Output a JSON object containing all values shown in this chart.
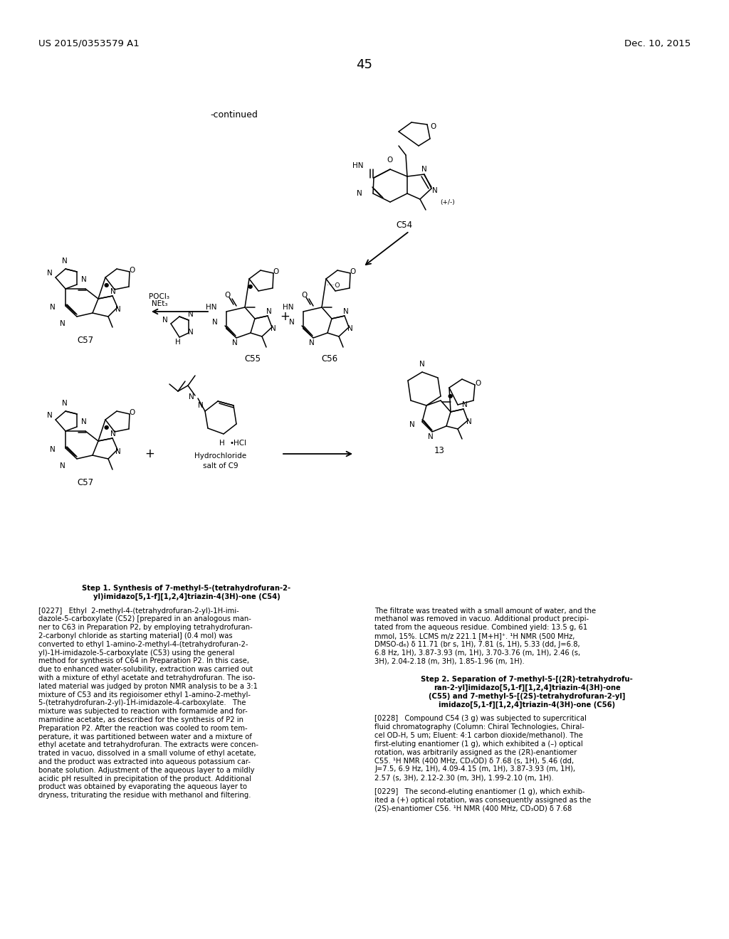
{
  "background_color": "#ffffff",
  "header_left": "US 2015/0353579 A1",
  "header_right": "Dec. 10, 2015",
  "page_number": "45",
  "continued_label": "-continued",
  "fig_width": 10.24,
  "fig_height": 13.2,
  "text_color": "#000000",
  "font_size_header": 9.5,
  "font_size_body": 7.2,
  "font_size_label": 7.5,
  "step1_title_l1": "Step 1. Synthesis of 7-methyl-5-(tetrahydrofuran-2-",
  "step1_title_l2": "yl)imidazo[5,1-f][1,2,4]triazin-4(3H)-one (C54)",
  "step2_title_l1": "Step 2. Separation of 7-methyl-5-[(2R)-tetrahydrofu-",
  "step2_title_l2": "ran-2-yl]imidazo[5,1-f][1,2,4]triazin-4(3H)-one",
  "step2_title_l3": "(C55) and 7-methyl-5-[(2S)-tetrahydrofuran-2-yl]",
  "step2_title_l4": "imidazo[5,1-f][1,2,4]triazin-4(3H)-one (C56)",
  "para0227_lines": [
    "[0227]   Ethyl  2-methyl-4-(tetrahydrofuran-2-yl)-1H-imi-",
    "dazole-5-carboxylate (C52) [prepared in an analogous man-",
    "ner to C63 in Preparation P2, by employing tetrahydrofuran-",
    "2-carbonyl chloride as starting material] (0.4 mol) was",
    "converted to ethyl 1-amino-2-methyl-4-(tetrahydrofuran-2-",
    "yl)-1H-imidazole-5-carboxylate (C53) using the general",
    "method for synthesis of C64 in Preparation P2. In this case,",
    "due to enhanced water-solubility, extraction was carried out",
    "with a mixture of ethyl acetate and tetrahydrofuran. The iso-",
    "lated material was judged by proton NMR analysis to be a 3:1",
    "mixture of C53 and its regioisomer ethyl 1-amino-2-methyl-",
    "5-(tetrahydrofuran-2-yl)-1H-imidazole-4-carboxylate.   The",
    "mixture was subjected to reaction with formamide and for-",
    "mamidine acetate, as described for the synthesis of P2 in",
    "Preparation P2. After the reaction was cooled to room tem-",
    "perature, it was partitioned between water and a mixture of",
    "ethyl acetate and tetrahydrofuran. The extracts were concen-",
    "trated in vacuo, dissolved in a small volume of ethyl acetate,",
    "and the product was extracted into aqueous potassium car-",
    "bonate solution. Adjustment of the aqueous layer to a mildly",
    "acidic pH resulted in precipitation of the product. Additional",
    "product was obtained by evaporating the aqueous layer to",
    "dryness, triturating the residue with methanol and filtering."
  ],
  "para0227r_lines": [
    "The filtrate was treated with a small amount of water, and the",
    "methanol was removed in vacuo. Additional product precipi-",
    "tated from the aqueous residue. Combined yield: 13.5 g, 61",
    "mmol, 15%. LCMS m/z 221.1 [M+H]⁺. ¹H NMR (500 MHz,",
    "DMSO-d₆) δ 11.71 (br s, 1H), 7.81 (s, 1H), 5.33 (dd, J=6.8,",
    "6.8 Hz, 1H), 3.87-3.93 (m, 1H), 3.70-3.76 (m, 1H), 2.46 (s,",
    "3H), 2.04-2.18 (m, 3H), 1.85-1.96 (m, 1H)."
  ],
  "para0228_lines": [
    "[0228]   Compound C54 (3 g) was subjected to supercritical",
    "fluid chromatography (Column: Chiral Technologies, Chiral-",
    "cel OD-H, 5 um; Eluent: 4:1 carbon dioxide/methanol). The",
    "first-eluting enantiomer (1 g), which exhibited a (–) optical",
    "rotation, was arbitrarily assigned as the (2R)-enantiomer",
    "C55. ¹H NMR (400 MHz, CD₃OD) δ 7.68 (s, 1H), 5.46 (dd,",
    "J=7.5, 6.9 Hz, 1H), 4.09-4.15 (m, 1H), 3.87-3.93 (m, 1H),",
    "2.57 (s, 3H), 2.12-2.30 (m, 3H), 1.99-2.10 (m, 1H)."
  ],
  "para0229_lines": [
    "[0229]   The second-eluting enantiomer (1 g), which exhib-",
    "ited a (+) optical rotation, was consequently assigned as the",
    "(2S)-enantiomer C56. ¹H NMR (400 MHz, CD₃OD) δ 7.68"
  ]
}
